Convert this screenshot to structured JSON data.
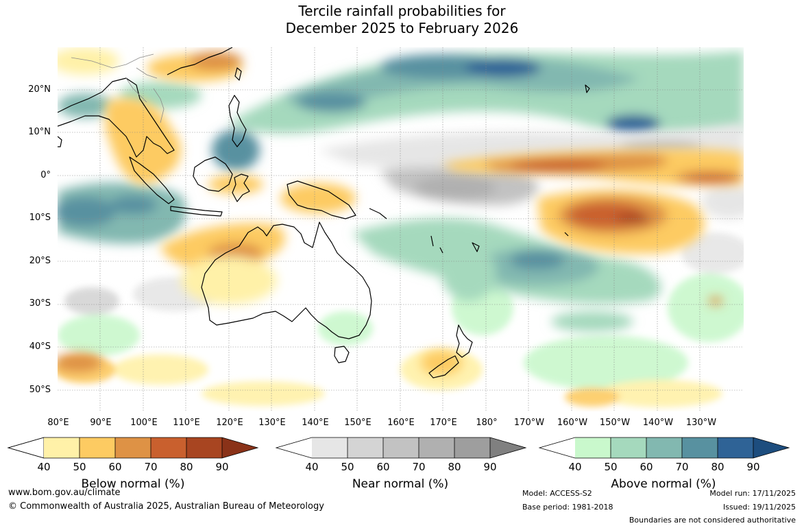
{
  "title_line1": "Tercile rainfall probabilities for",
  "title_line2": "December 2025 to February 2026",
  "lat_labels": [
    "20°N",
    "10°N",
    "0°",
    "10°S",
    "20°S",
    "30°S",
    "40°S",
    "50°S"
  ],
  "lon_labels": [
    "80°E",
    "90°E",
    "100°E",
    "110°E",
    "120°E",
    "130°E",
    "140°E",
    "150°E",
    "160°E",
    "170°E",
    "180°",
    "170°W",
    "160°W",
    "150°W",
    "140°W",
    "130°W"
  ],
  "colorbars": {
    "below": {
      "label": "Below normal (%)",
      "ticks": [
        "40",
        "50",
        "60",
        "70",
        "80",
        "90"
      ],
      "colors": [
        "#fff1a8",
        "#fdcb62",
        "#de9245",
        "#c9602e",
        "#a84521",
        "#8a3218"
      ]
    },
    "near": {
      "label": "Near normal (%)",
      "ticks": [
        "40",
        "50",
        "60",
        "70",
        "80",
        "90"
      ],
      "colors": [
        "#e6e6e6",
        "#d4d4d4",
        "#c2c2c2",
        "#b0b0b0",
        "#9e9e9e",
        "#808080"
      ]
    },
    "above": {
      "label": "Above normal (%)",
      "ticks": [
        "40",
        "50",
        "60",
        "70",
        "80",
        "90"
      ],
      "colors": [
        "#c9f8cc",
        "#a5d9bd",
        "#82b8b0",
        "#5891a0",
        "#2f6396",
        "#1d4d7e"
      ]
    }
  },
  "footer": {
    "website": "www.bom.gov.au/climate",
    "copyright": "© Commonwealth of Australia 2025, Australian Bureau of Meteorology",
    "model": "Model: ACCESS-S2",
    "base_period": "Base period: 1981-2018",
    "model_run": "Model run: 17/11/2025",
    "issued": "Issued: 19/11/2025",
    "disclaimer": "Boundaries are not considered authoritative"
  }
}
